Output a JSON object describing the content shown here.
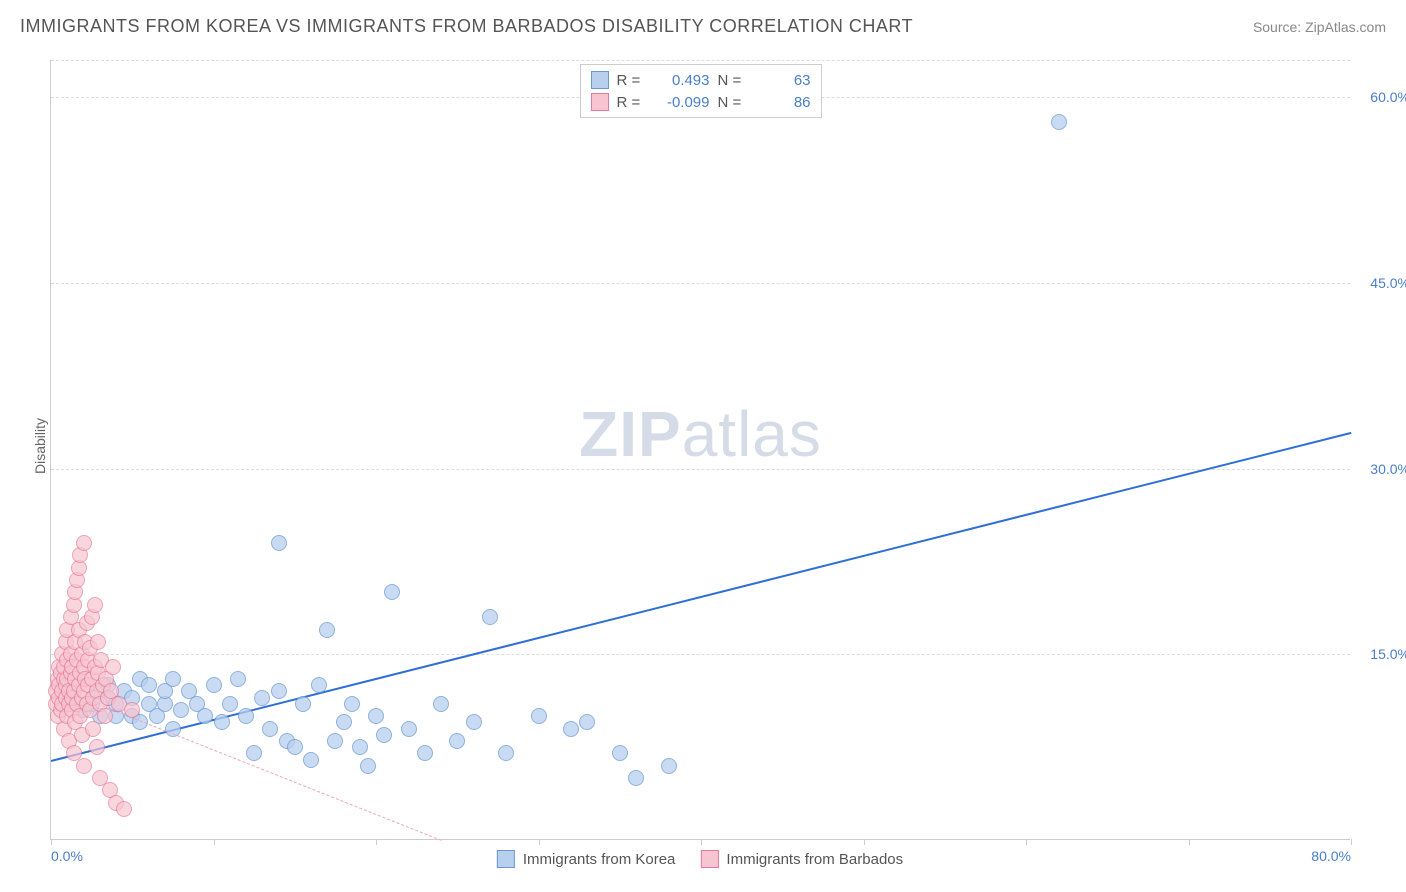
{
  "title": "IMMIGRANTS FROM KOREA VS IMMIGRANTS FROM BARBADOS DISABILITY CORRELATION CHART",
  "source_prefix": "Source: ",
  "source_name": "ZipAtlas.com",
  "y_axis_label": "Disability",
  "watermark_bold": "ZIP",
  "watermark_rest": "atlas",
  "chart": {
    "xlim": [
      0,
      80
    ],
    "ylim": [
      0,
      63
    ],
    "x_ticks": [
      0,
      10,
      20,
      30,
      40,
      50,
      60,
      70,
      80
    ],
    "x_labels": {
      "0": "0.0%",
      "80": "80.0%"
    },
    "y_gridlines": [
      15,
      30,
      45,
      60
    ],
    "y_labels": {
      "15": "15.0%",
      "30": "30.0%",
      "45": "45.0%",
      "60": "60.0%"
    },
    "grid_color": "#dddddd",
    "axis_color": "#cccccc",
    "background_color": "#ffffff"
  },
  "series": [
    {
      "name": "Immigrants from Korea",
      "marker_fill": "#b8d0ee",
      "marker_stroke": "#6998d4",
      "marker_radius": 8,
      "marker_opacity": 0.75,
      "R_label": "R =",
      "R_value": "0.493",
      "N_label": "N =",
      "N_value": "63",
      "trend": {
        "x1": 0,
        "y1": 6.5,
        "x2": 80,
        "y2": 33,
        "color": "#2e6fd6",
        "width": 2,
        "dashed": false
      },
      "points": [
        [
          1.5,
          11
        ],
        [
          2,
          10.5
        ],
        [
          2.5,
          11
        ],
        [
          3,
          12
        ],
        [
          3,
          10
        ],
        [
          3.5,
          11.5
        ],
        [
          3.5,
          12.5
        ],
        [
          4,
          10
        ],
        [
          4,
          11
        ],
        [
          4.5,
          12
        ],
        [
          5,
          10
        ],
        [
          5,
          11.5
        ],
        [
          5.5,
          13
        ],
        [
          5.5,
          9.5
        ],
        [
          6,
          11
        ],
        [
          6,
          12.5
        ],
        [
          6.5,
          10
        ],
        [
          7,
          11
        ],
        [
          7,
          12
        ],
        [
          7.5,
          9
        ],
        [
          7.5,
          13
        ],
        [
          8,
          10.5
        ],
        [
          8.5,
          12
        ],
        [
          9,
          11
        ],
        [
          9.5,
          10
        ],
        [
          10,
          12.5
        ],
        [
          10.5,
          9.5
        ],
        [
          11,
          11
        ],
        [
          11.5,
          13
        ],
        [
          12,
          10
        ],
        [
          12.5,
          7
        ],
        [
          13,
          11.5
        ],
        [
          13.5,
          9
        ],
        [
          14,
          12
        ],
        [
          14,
          24
        ],
        [
          14.5,
          8
        ],
        [
          15,
          7.5
        ],
        [
          15.5,
          11
        ],
        [
          16,
          6.5
        ],
        [
          16.5,
          12.5
        ],
        [
          17,
          17
        ],
        [
          17.5,
          8
        ],
        [
          18,
          9.5
        ],
        [
          18.5,
          11
        ],
        [
          19,
          7.5
        ],
        [
          19.5,
          6
        ],
        [
          20,
          10
        ],
        [
          20.5,
          8.5
        ],
        [
          21,
          20
        ],
        [
          22,
          9
        ],
        [
          23,
          7
        ],
        [
          24,
          11
        ],
        [
          25,
          8
        ],
        [
          26,
          9.5
        ],
        [
          27,
          18
        ],
        [
          28,
          7
        ],
        [
          30,
          10
        ],
        [
          32,
          9
        ],
        [
          33,
          9.5
        ],
        [
          35,
          7
        ],
        [
          36,
          5
        ],
        [
          38,
          6
        ],
        [
          62,
          58
        ]
      ]
    },
    {
      "name": "Immigrants from Barbados",
      "marker_fill": "#f7c5d1",
      "marker_stroke": "#e77a9a",
      "marker_radius": 8,
      "marker_opacity": 0.7,
      "R_label": "R =",
      "R_value": "-0.099",
      "N_label": "N =",
      "N_value": "86",
      "trend": {
        "x1": 0,
        "y1": 12.5,
        "x2": 24,
        "y2": 0,
        "color": "#f0a5b8",
        "width": 1.5,
        "dashed": true
      },
      "points": [
        [
          0.3,
          11
        ],
        [
          0.3,
          12
        ],
        [
          0.4,
          13
        ],
        [
          0.4,
          10
        ],
        [
          0.5,
          14
        ],
        [
          0.5,
          11.5
        ],
        [
          0.5,
          12.5
        ],
        [
          0.6,
          13.5
        ],
        [
          0.6,
          10.5
        ],
        [
          0.7,
          15
        ],
        [
          0.7,
          11
        ],
        [
          0.7,
          12
        ],
        [
          0.8,
          13
        ],
        [
          0.8,
          14
        ],
        [
          0.8,
          9
        ],
        [
          0.9,
          11.5
        ],
        [
          0.9,
          12.5
        ],
        [
          0.9,
          16
        ],
        [
          1.0,
          10
        ],
        [
          1.0,
          13
        ],
        [
          1.0,
          14.5
        ],
        [
          1.0,
          17
        ],
        [
          1.1,
          11
        ],
        [
          1.1,
          12
        ],
        [
          1.1,
          8
        ],
        [
          1.2,
          13.5
        ],
        [
          1.2,
          15
        ],
        [
          1.2,
          18
        ],
        [
          1.3,
          10.5
        ],
        [
          1.3,
          11.5
        ],
        [
          1.3,
          14
        ],
        [
          1.4,
          12
        ],
        [
          1.4,
          19
        ],
        [
          1.4,
          7
        ],
        [
          1.5,
          13
        ],
        [
          1.5,
          16
        ],
        [
          1.5,
          20
        ],
        [
          1.5,
          9.5
        ],
        [
          1.6,
          11
        ],
        [
          1.6,
          14.5
        ],
        [
          1.6,
          21
        ],
        [
          1.7,
          12.5
        ],
        [
          1.7,
          17
        ],
        [
          1.7,
          22
        ],
        [
          1.8,
          10
        ],
        [
          1.8,
          13.5
        ],
        [
          1.8,
          23
        ],
        [
          1.9,
          11.5
        ],
        [
          1.9,
          15
        ],
        [
          1.9,
          8.5
        ],
        [
          2.0,
          12
        ],
        [
          2.0,
          14
        ],
        [
          2.0,
          24
        ],
        [
          2.0,
          6
        ],
        [
          2.1,
          13
        ],
        [
          2.1,
          16
        ],
        [
          2.2,
          11
        ],
        [
          2.2,
          17.5
        ],
        [
          2.3,
          12.5
        ],
        [
          2.3,
          14.5
        ],
        [
          2.4,
          10.5
        ],
        [
          2.4,
          15.5
        ],
        [
          2.5,
          13
        ],
        [
          2.5,
          18
        ],
        [
          2.6,
          11.5
        ],
        [
          2.6,
          9
        ],
        [
          2.7,
          14
        ],
        [
          2.7,
          19
        ],
        [
          2.8,
          12
        ],
        [
          2.8,
          7.5
        ],
        [
          2.9,
          13.5
        ],
        [
          2.9,
          16
        ],
        [
          3.0,
          11
        ],
        [
          3.0,
          5
        ],
        [
          3.1,
          14.5
        ],
        [
          3.2,
          12.5
        ],
        [
          3.3,
          10
        ],
        [
          3.4,
          13
        ],
        [
          3.5,
          11.5
        ],
        [
          3.6,
          4
        ],
        [
          3.7,
          12
        ],
        [
          3.8,
          14
        ],
        [
          4.0,
          3
        ],
        [
          4.2,
          11
        ],
        [
          4.5,
          2.5
        ],
        [
          5.0,
          10.5
        ]
      ]
    }
  ],
  "legend_bottom": [
    {
      "label": "Immigrants from Korea",
      "fill": "#b8d0ee",
      "stroke": "#6998d4"
    },
    {
      "label": "Immigrants from Barbados",
      "fill": "#f7c5d1",
      "stroke": "#e77a9a"
    }
  ]
}
